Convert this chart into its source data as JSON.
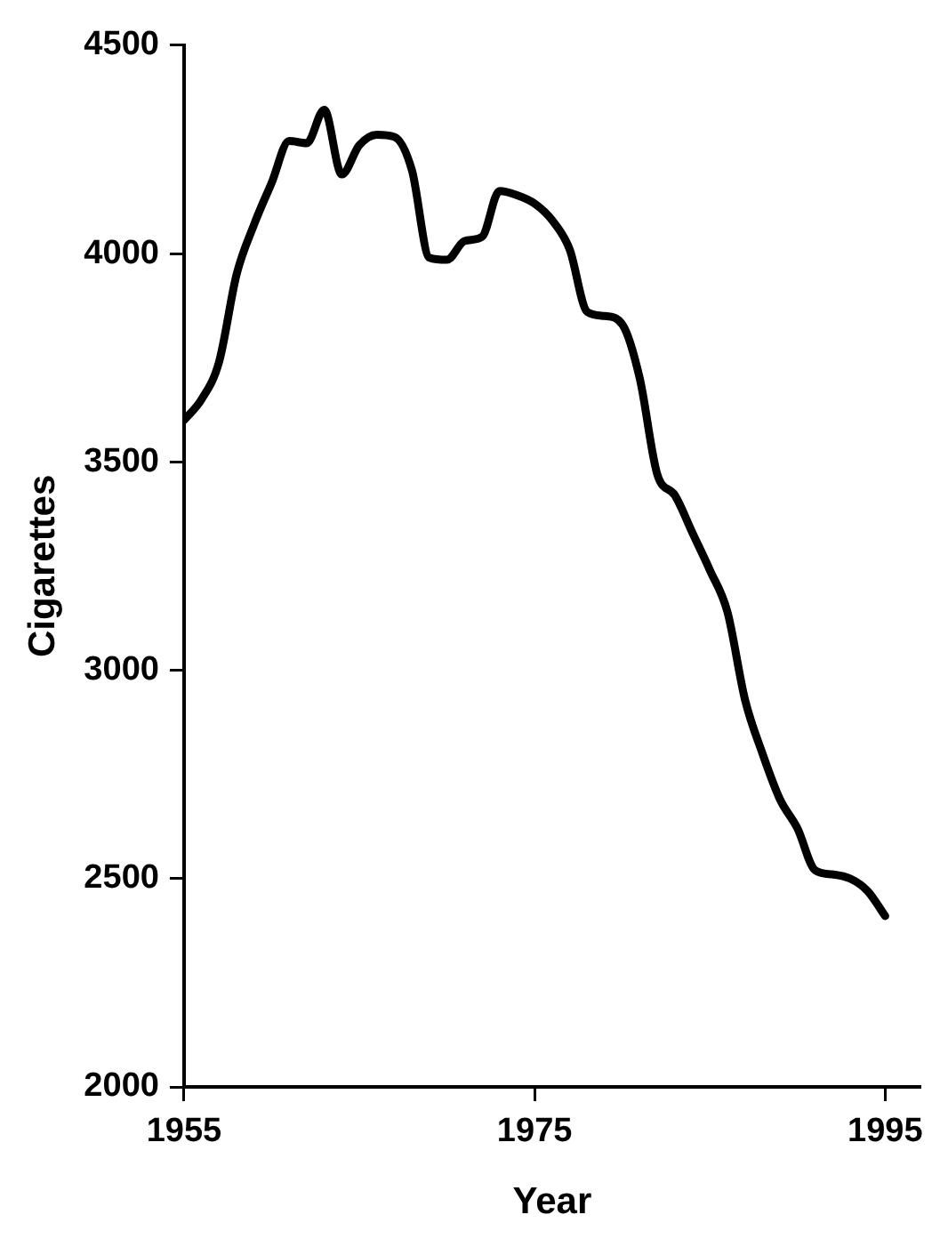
{
  "chart_data": {
    "type": "line",
    "xlabel": "Year",
    "ylabel": "Cigarettes",
    "x": [
      1955,
      1956,
      1957,
      1958,
      1959,
      1960,
      1961,
      1962,
      1963,
      1964,
      1965,
      1966,
      1967,
      1968,
      1969,
      1970,
      1971,
      1972,
      1973,
      1974,
      1975,
      1976,
      1977,
      1978,
      1979,
      1980,
      1981,
      1982,
      1983,
      1984,
      1985,
      1986,
      1987,
      1988,
      1989,
      1990,
      1991,
      1992,
      1993,
      1994,
      1995
    ],
    "series": [
      {
        "color": "#000000",
        "values": [
          3600,
          3650,
          3740,
          3950,
          4070,
          4170,
          4270,
          4265,
          4345,
          4190,
          4260,
          4285,
          4280,
          4200,
          3990,
          3985,
          4030,
          4040,
          4150,
          4140,
          4120,
          4080,
          4010,
          3860,
          3850,
          3830,
          3700,
          3470,
          3420,
          3330,
          3240,
          3140,
          2930,
          2800,
          2690,
          2620,
          2520,
          2510,
          2500,
          2470,
          2410
        ]
      }
    ],
    "xlim": [
      1955,
      1997
    ],
    "xticks": [
      1955,
      1975,
      1995
    ],
    "ylim": [
      2000,
      4500
    ],
    "yticks": [
      2000,
      2500,
      3000,
      3500,
      4000,
      4500
    ],
    "grid": false,
    "legend": false,
    "marker": "none",
    "line_style": "solid"
  }
}
